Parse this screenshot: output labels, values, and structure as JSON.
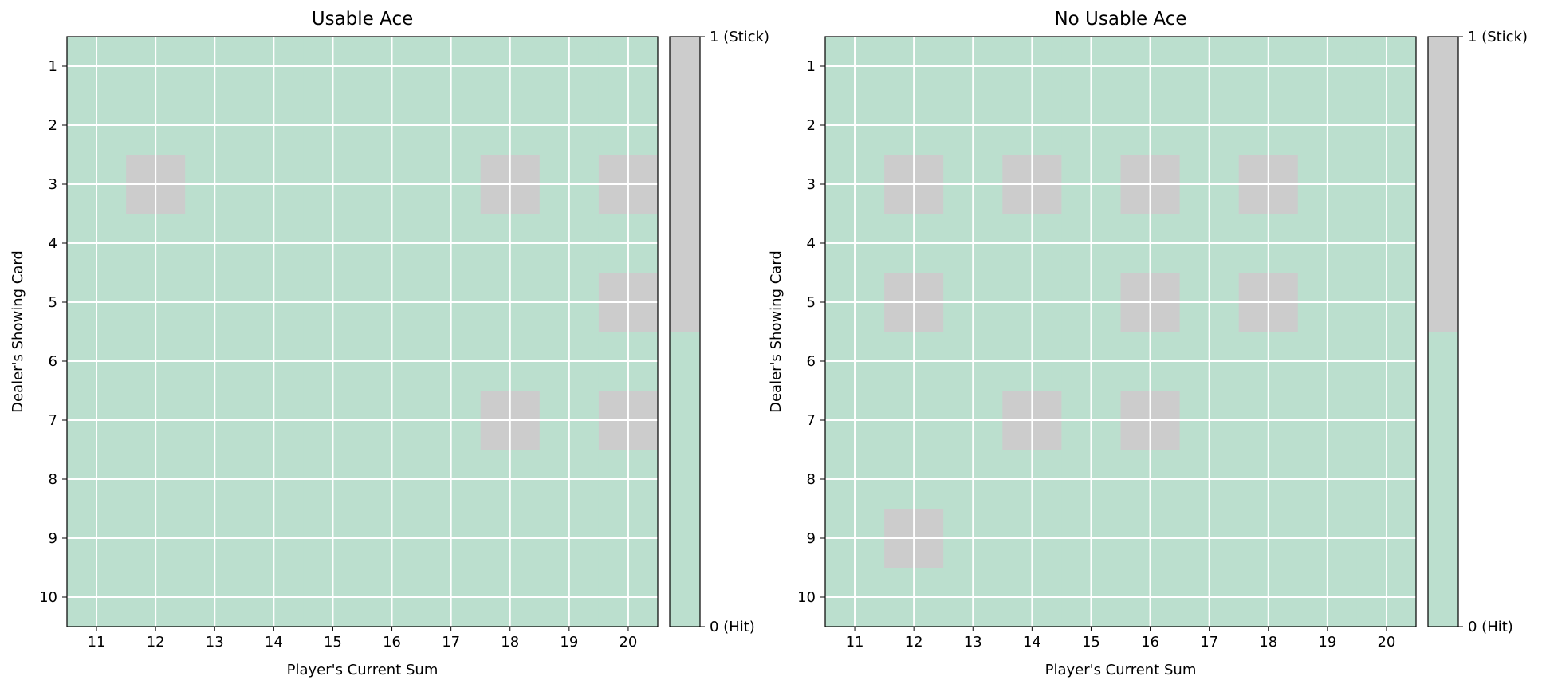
{
  "chart_data": [
    {
      "type": "heatmap",
      "title": "Usable Ace",
      "xlabel": "Player's Current Sum",
      "ylabel": "Dealer's Showing Card",
      "x": [
        11,
        12,
        13,
        14,
        15,
        16,
        17,
        18,
        19,
        20
      ],
      "y": [
        1,
        2,
        3,
        4,
        5,
        6,
        7,
        8,
        9,
        10
      ],
      "values": [
        [
          0,
          0,
          0,
          0,
          0,
          0,
          0,
          0,
          0,
          0
        ],
        [
          0,
          0,
          0,
          0,
          0,
          0,
          0,
          0,
          0,
          0
        ],
        [
          0,
          1,
          0,
          0,
          0,
          0,
          0,
          1,
          0,
          1
        ],
        [
          0,
          0,
          0,
          0,
          0,
          0,
          0,
          0,
          0,
          0
        ],
        [
          0,
          0,
          0,
          0,
          0,
          0,
          0,
          0,
          0,
          1
        ],
        [
          0,
          0,
          0,
          0,
          0,
          0,
          0,
          0,
          0,
          0
        ],
        [
          0,
          0,
          0,
          0,
          0,
          0,
          0,
          1,
          0,
          1
        ],
        [
          0,
          0,
          0,
          0,
          0,
          0,
          0,
          0,
          0,
          0
        ],
        [
          0,
          0,
          0,
          0,
          0,
          0,
          0,
          0,
          0,
          0
        ],
        [
          0,
          0,
          0,
          0,
          0,
          0,
          0,
          0,
          0,
          0
        ]
      ],
      "colorbar": {
        "ticks": [
          0,
          1
        ],
        "tick_labels": [
          "0 (Hit)",
          "1 (Stick)"
        ]
      },
      "grid": true
    },
    {
      "type": "heatmap",
      "title": "No Usable Ace",
      "xlabel": "Player's Current Sum",
      "ylabel": "Dealer's Showing Card",
      "x": [
        11,
        12,
        13,
        14,
        15,
        16,
        17,
        18,
        19,
        20
      ],
      "y": [
        1,
        2,
        3,
        4,
        5,
        6,
        7,
        8,
        9,
        10
      ],
      "values": [
        [
          0,
          0,
          0,
          0,
          0,
          0,
          0,
          0,
          0,
          0
        ],
        [
          0,
          0,
          0,
          0,
          0,
          0,
          0,
          0,
          0,
          0
        ],
        [
          0,
          1,
          0,
          1,
          0,
          1,
          0,
          1,
          0,
          0
        ],
        [
          0,
          0,
          0,
          0,
          0,
          0,
          0,
          0,
          0,
          0
        ],
        [
          0,
          1,
          0,
          0,
          0,
          1,
          0,
          1,
          0,
          0
        ],
        [
          0,
          0,
          0,
          0,
          0,
          0,
          0,
          0,
          0,
          0
        ],
        [
          0,
          0,
          0,
          1,
          0,
          1,
          0,
          0,
          0,
          0
        ],
        [
          0,
          0,
          0,
          0,
          0,
          0,
          0,
          0,
          0,
          0
        ],
        [
          0,
          1,
          0,
          0,
          0,
          0,
          0,
          0,
          0,
          0
        ],
        [
          0,
          0,
          0,
          0,
          0,
          0,
          0,
          0,
          0,
          0
        ]
      ],
      "colorbar": {
        "ticks": [
          0,
          1
        ],
        "tick_labels": [
          "0 (Hit)",
          "1 (Stick)"
        ]
      },
      "grid": true
    }
  ],
  "colors": {
    "hit": "#bbdfce",
    "stick": "#cccccc",
    "grid": "#ffffff",
    "axis": "#000000"
  }
}
